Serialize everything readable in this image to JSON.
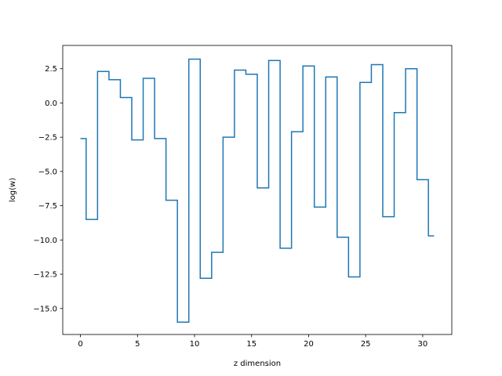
{
  "chart_data": {
    "type": "line",
    "drawstyle": "steps-mid",
    "title": "",
    "xlabel": "z dimension",
    "ylabel": "log(w)",
    "xlim": [
      -1.55,
      32.55
    ],
    "ylim": [
      -16.9,
      4.2
    ],
    "grid": false,
    "xticks": [
      0,
      5,
      10,
      15,
      20,
      25,
      30
    ],
    "xtick_labels": [
      "0",
      "5",
      "10",
      "15",
      "20",
      "25",
      "30"
    ],
    "yticks": [
      2.5,
      0.0,
      -2.5,
      -5.0,
      -7.5,
      -10.0,
      -12.5,
      -15.0
    ],
    "ytick_labels": [
      "2.5",
      "0.0",
      "−2.5",
      "−5.0",
      "−7.5",
      "−10.0",
      "−12.5",
      "−15.0"
    ],
    "line_color": "#1f77b4",
    "x": [
      0,
      1,
      2,
      3,
      4,
      5,
      6,
      7,
      8,
      9,
      10,
      11,
      12,
      13,
      14,
      15,
      16,
      17,
      18,
      19,
      20,
      21,
      22,
      23,
      24,
      25,
      26,
      27,
      28,
      29,
      30,
      31
    ],
    "y": [
      -2.6,
      -8.5,
      2.3,
      1.7,
      0.4,
      -2.7,
      1.8,
      -2.6,
      -7.1,
      -16.0,
      3.2,
      -12.8,
      -10.9,
      -2.5,
      2.4,
      2.1,
      -6.2,
      3.1,
      -10.6,
      -2.1,
      2.7,
      -7.6,
      1.9,
      -9.8,
      -12.7,
      1.5,
      2.8,
      -8.3,
      -0.7,
      2.5,
      -5.6,
      -9.7
    ]
  }
}
